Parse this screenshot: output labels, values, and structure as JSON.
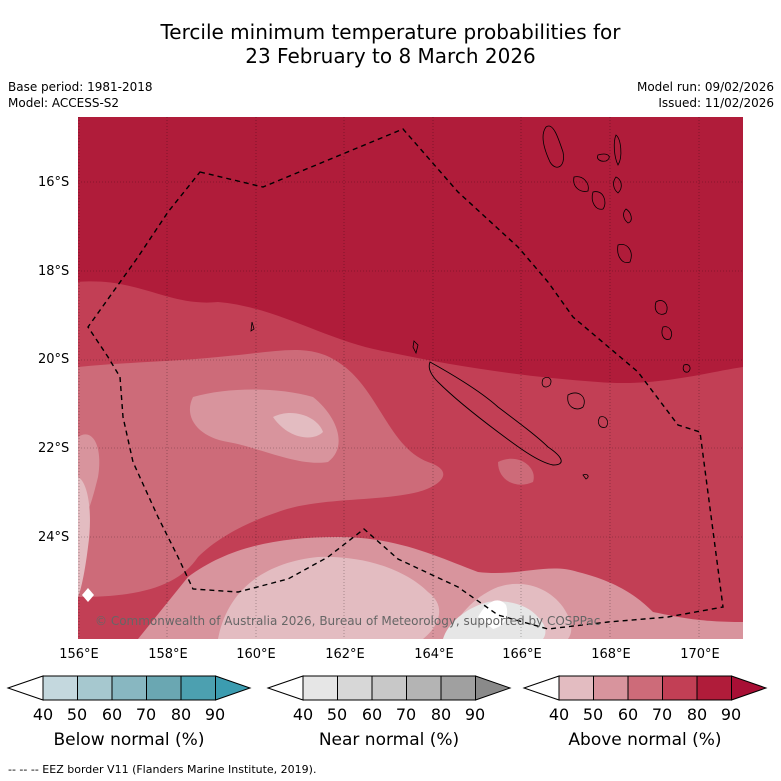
{
  "title": {
    "line1": "Tercile minimum temperature probabilities for",
    "line2": "23 February to 8 March 2026"
  },
  "meta": {
    "base_period": "Base period: 1981-2018",
    "model": "Model: ACCESS-S2",
    "model_run": "Model run: 09/02/2026",
    "issued": "Issued: 11/02/2026"
  },
  "map": {
    "latitude_labels": [
      "16°S",
      "18°S",
      "20°S",
      "22°S",
      "24°S"
    ],
    "longitude_labels": [
      "156°E",
      "158°E",
      "160°E",
      "162°E",
      "164°E",
      "166°E",
      "168°E",
      "170°E"
    ],
    "copyright": "© Commonwealth of Australia 2026, Bureau of Meteorology, supported by COSPPac",
    "colors": {
      "above_90": "#b01c3a",
      "above_80": "#c23f55",
      "above_70": "#cd6b79",
      "above_60": "#d8949d",
      "above_50": "#e3bcc1",
      "white": "#ffffff",
      "near_grey": "#e6e6e6"
    }
  },
  "legend": {
    "below": {
      "title": "Below normal (%)",
      "ticks": [
        "40",
        "50",
        "60",
        "70",
        "80",
        "90"
      ],
      "colors": [
        "#c4d8de",
        "#a6c8cf",
        "#88b7c1",
        "#6aa7b2",
        "#4ca0b0",
        "#3c9cb0"
      ]
    },
    "near": {
      "title": "Near normal (%)",
      "ticks": [
        "40",
        "50",
        "60",
        "70",
        "80",
        "90"
      ],
      "colors": [
        "#e6e6e6",
        "#d7d7d7",
        "#c8c8c8",
        "#b4b4b4",
        "#a0a0a0",
        "#8a8a8a"
      ]
    },
    "above": {
      "title": "Above normal (%)",
      "ticks": [
        "40",
        "50",
        "60",
        "70",
        "80",
        "90"
      ],
      "colors": [
        "#e3bcc1",
        "#d8949d",
        "#cd6b79",
        "#c23f55",
        "#b01c3a",
        "#a80f35"
      ]
    }
  },
  "footer": "--  --  -- EEZ border V11 (Flanders Marine Institute, 2019)."
}
